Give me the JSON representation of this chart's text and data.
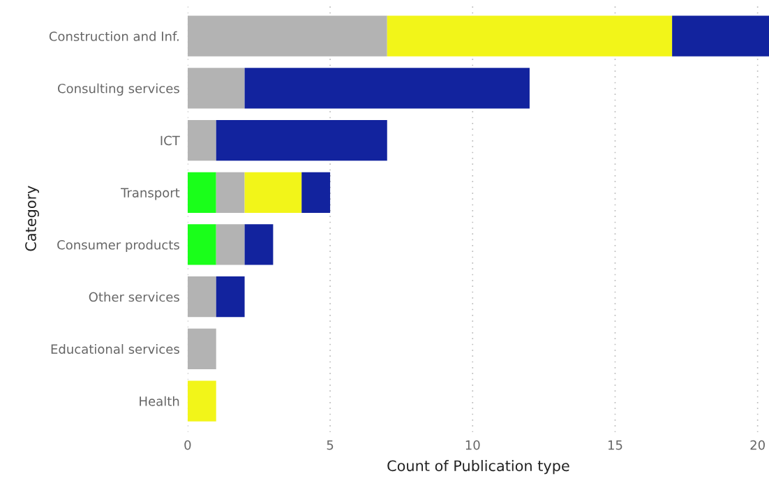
{
  "chart_data": {
    "type": "bar",
    "orientation": "horizontal",
    "stacked": true,
    "xlabel": "Count of Publication type",
    "ylabel": "Category",
    "categories": [
      "Construction and Inf.",
      "Consulting services",
      "ICT",
      "Transport",
      "Consumer products",
      "Other services",
      "Educational services",
      "Health"
    ],
    "series": [
      {
        "color": "#1aff1a",
        "values": [
          null,
          null,
          null,
          1,
          1,
          null,
          null,
          null
        ]
      },
      {
        "color": "#b3b3b3",
        "values": [
          7,
          2,
          1,
          1,
          1,
          1,
          1,
          null
        ]
      },
      {
        "color": "#f2f519",
        "values": [
          10,
          null,
          null,
          2,
          null,
          null,
          null,
          1
        ]
      },
      {
        "color": "#12239e",
        "values": [
          3.4,
          10,
          6,
          1,
          1,
          1,
          null,
          null
        ]
      }
    ],
    "xlim": [
      0,
      20.4
    ],
    "xticks": [
      0,
      5,
      10,
      15,
      20
    ],
    "grid": "x"
  }
}
